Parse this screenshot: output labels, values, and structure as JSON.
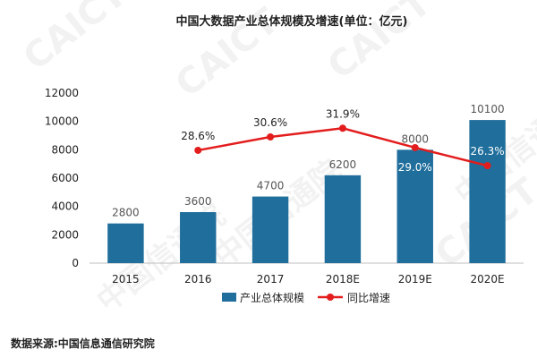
{
  "chart_data": {
    "type": "bar",
    "title": "中国大数据产业总体规模及增速(单位：亿元)",
    "categories": [
      "2015",
      "2016",
      "2017",
      "2018E",
      "2019E",
      "2020E"
    ],
    "series": [
      {
        "name": "产业总体规模",
        "type": "bar",
        "values": [
          2800,
          3600,
          4700,
          6200,
          8000,
          10100
        ],
        "labels": [
          "2800",
          "3600",
          "4700",
          "6200",
          "8000",
          "10100"
        ]
      },
      {
        "name": "同比增速",
        "type": "line",
        "values": [
          null,
          28.6,
          30.6,
          31.9,
          29.0,
          26.3
        ],
        "labels": [
          "",
          "28.6%",
          "30.6%",
          "31.9%",
          "29.0%",
          "26.3%"
        ]
      }
    ],
    "yticks": [
      "0",
      "2000",
      "4000",
      "6000",
      "8000",
      "10000",
      "12000"
    ],
    "ylim": [
      0,
      12000
    ],
    "grid": false,
    "legend_position": "bottom"
  },
  "source": "数据来源:中国信息通信研究院",
  "watermark": [
    "CAICT",
    "中国信通院"
  ],
  "colors": {
    "bar": "#1f6e9c",
    "line": "#e31d1d",
    "text": "#222222",
    "axis": "#bfbfbf",
    "watermark": "#d9d9d9"
  }
}
